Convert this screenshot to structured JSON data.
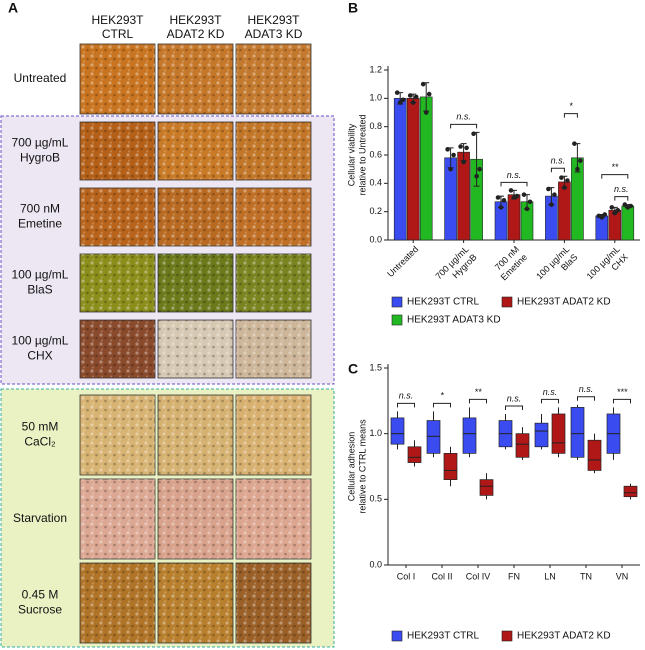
{
  "panel_a": {
    "label": "A",
    "columns": [
      [
        "HEK293T",
        "CTRL"
      ],
      [
        "HEK293T",
        "ADAT2 KD"
      ],
      [
        "HEK293T",
        "ADAT3 KD"
      ]
    ],
    "rows": [
      [
        "Untreated"
      ],
      [
        "700 µg/mL",
        "HygroB"
      ],
      [
        "700 nM",
        "Emetine"
      ],
      [
        "100 µg/mL",
        "BlaS"
      ],
      [
        "100 µg/mL",
        "CHX"
      ],
      [
        "50 mM",
        "CaCl₂"
      ],
      [
        "Starvation"
      ],
      [
        "0.45 M",
        "Sucrose"
      ]
    ]
  },
  "chart_data": [
    {
      "type": "bar",
      "panel_label": "B",
      "ylabel": [
        "Cellular viability",
        "relative to Untreated"
      ],
      "categories": [
        [
          "Untreated"
        ],
        [
          "700 µg/mL",
          "HygroB"
        ],
        [
          "700 nM",
          "Emetine"
        ],
        [
          "100 µg/mL",
          "BlaS"
        ],
        [
          "100 µg/mL",
          "CHX"
        ]
      ],
      "ylim": [
        0,
        1.2
      ],
      "yticks": [
        {
          "value": 0,
          "label": "0.0"
        },
        0.2,
        0.4,
        0.6,
        0.8,
        {
          "value": 1,
          "label": "1.0"
        },
        1.2
      ],
      "series": [
        {
          "name": "HEK293T CTRL",
          "color": "#3a4cf0",
          "values": [
            1.0,
            0.58,
            0.27,
            0.31,
            0.17
          ],
          "errors": [
            0.04,
            0.07,
            0.04,
            0.06,
            0.01
          ],
          "points": [
            [
              1.04,
              0.97,
              0.99
            ],
            [
              0.64,
              0.5,
              0.6
            ],
            [
              0.3,
              0.23,
              0.28
            ],
            [
              0.36,
              0.25,
              0.32
            ],
            [
              0.17,
              0.16,
              0.18
            ]
          ]
        },
        {
          "name": "HEK293T ADAT2 KD",
          "color": "#b01818",
          "values": [
            1.0,
            0.62,
            0.32,
            0.41,
            0.21
          ],
          "errors": [
            0.03,
            0.06,
            0.03,
            0.04,
            0.02
          ],
          "points": [
            [
              1.02,
              0.97,
              1.01
            ],
            [
              0.66,
              0.55,
              0.65
            ],
            [
              0.35,
              0.3,
              0.31
            ],
            [
              0.44,
              0.37,
              0.42
            ],
            [
              0.23,
              0.19,
              0.21
            ]
          ]
        },
        {
          "name": "HEK293T ADAT3 KD",
          "color": "#22b822",
          "values": [
            1.01,
            0.57,
            0.27,
            0.58,
            0.24
          ],
          "errors": [
            0.1,
            0.19,
            0.05,
            0.1,
            0.01
          ],
          "points": [
            [
              1.1,
              0.9,
              1.03
            ],
            [
              0.75,
              0.45,
              0.5
            ],
            [
              0.32,
              0.22,
              0.27
            ],
            [
              0.68,
              0.5,
              0.56
            ],
            [
              0.25,
              0.23,
              0.24
            ]
          ]
        }
      ],
      "annotations": [
        "n.s.",
        "n.s.",
        "n.s.",
        "*",
        "**",
        "n.s."
      ]
    },
    {
      "type": "box",
      "panel_label": "C",
      "ylabel": [
        "Cellular adhesion",
        "relative to CTRL means"
      ],
      "categories": [
        [
          "Col I"
        ],
        [
          "Col II"
        ],
        [
          "Col IV"
        ],
        [
          "FN"
        ],
        [
          "LN"
        ],
        [
          "TN"
        ],
        [
          "VN"
        ]
      ],
      "ylim": [
        0,
        1.5
      ],
      "yticks": [
        {
          "value": 0,
          "label": "0.0"
        },
        0.5,
        {
          "value": 1,
          "label": "1.0"
        },
        1.5
      ],
      "series": [
        {
          "name": "HEK293T CTRL",
          "color": "#3a4cf0",
          "min": [
            0.88,
            0.82,
            0.82,
            0.88,
            0.88,
            0.8,
            0.8
          ],
          "q1": [
            0.92,
            0.85,
            0.85,
            0.9,
            0.9,
            0.82,
            0.85
          ],
          "median": [
            1.0,
            0.98,
            1.0,
            1.0,
            1.02,
            1.0,
            1.0
          ],
          "q3": [
            1.12,
            1.1,
            1.12,
            1.1,
            1.08,
            1.2,
            1.15
          ],
          "max": [
            1.17,
            1.17,
            1.2,
            1.15,
            1.15,
            1.22,
            1.2
          ]
        },
        {
          "name": "HEK293T ADAT2 KD",
          "color": "#b01818",
          "min": [
            0.75,
            0.6,
            0.5,
            0.8,
            0.82,
            0.7,
            0.5
          ],
          "q1": [
            0.78,
            0.65,
            0.53,
            0.82,
            0.85,
            0.72,
            0.52
          ],
          "median": [
            0.82,
            0.72,
            0.6,
            0.92,
            0.93,
            0.8,
            0.55
          ],
          "q3": [
            0.9,
            0.85,
            0.65,
            1.0,
            1.15,
            0.95,
            0.6
          ],
          "max": [
            0.95,
            0.9,
            0.7,
            1.05,
            1.2,
            1.0,
            0.62
          ]
        }
      ],
      "annotations": [
        "n.s.",
        "*",
        "**",
        "n.s.",
        "n.s.",
        "n.s.",
        "***"
      ]
    }
  ]
}
